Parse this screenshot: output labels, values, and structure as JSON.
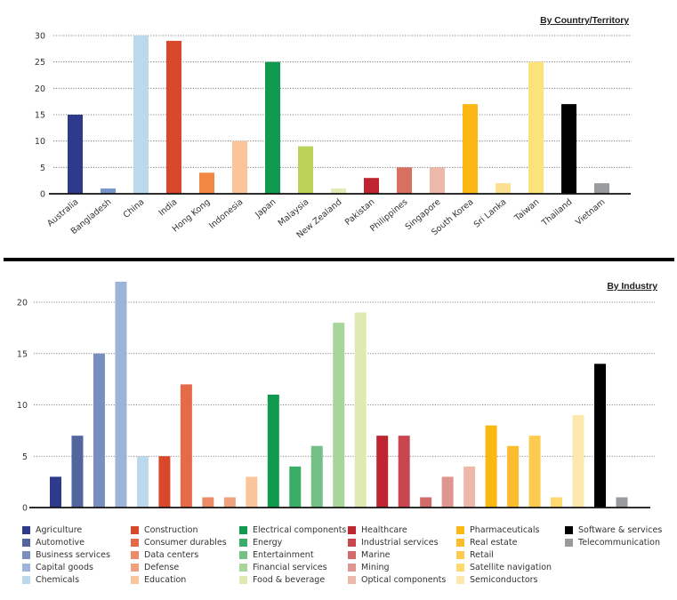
{
  "chart_data": [
    {
      "type": "bar",
      "title": "By Country/Territory",
      "xlabel": "",
      "ylabel": "",
      "ylim": [
        0,
        30
      ],
      "yticks": [
        0,
        5,
        10,
        15,
        20,
        25,
        30
      ],
      "grid": true,
      "categories": [
        "Australia",
        "Bangladesh",
        "China",
        "India",
        "Hong Kong",
        "Indonesia",
        "Japan",
        "Malaysia",
        "New Zealand",
        "Pakistan",
        "Philippines",
        "Singapore",
        "South Korea",
        "Sri Lanka",
        "Taiwan",
        "Thailand",
        "Vietnam"
      ],
      "values": [
        15,
        1,
        30,
        29,
        4,
        10,
        25,
        9,
        1,
        3,
        5,
        5,
        17,
        2,
        25,
        17,
        2
      ],
      "colors": [
        "#2e3a8c",
        "#7596c9",
        "#bcd8ec",
        "#d9482b",
        "#f28744",
        "#fbc59c",
        "#0f9a50",
        "#bcd35a",
        "#e3ebb5",
        "#be2530",
        "#d7705f",
        "#ebb8aa",
        "#fbb812",
        "#fde08f",
        "#fce27a",
        "#000000",
        "#9a9b9d"
      ]
    },
    {
      "type": "bar",
      "title": "By Industry",
      "xlabel": "",
      "ylabel": "",
      "ylim": [
        0,
        22
      ],
      "yticks": [
        0,
        5,
        10,
        15,
        20
      ],
      "grid": true,
      "legend_position": "bottom",
      "categories": [
        "Agriculture",
        "Automotive",
        "Business services",
        "Capital goods",
        "Chemicals",
        "Construction",
        "Consumer durables",
        "Data centers",
        "Defense",
        "Education",
        "Electrical components",
        "Energy",
        "Entertainment",
        "Financial services",
        "Food & beverage",
        "Healthcare",
        "Industrial services",
        "Marine",
        "Mining",
        "Optical components",
        "Pharmaceuticals",
        "Real estate",
        "Retail",
        "Satellite navigation",
        "Semiconductors",
        "Software & services",
        "Telecommunication"
      ],
      "values": [
        3,
        7,
        15,
        22,
        5,
        5,
        12,
        1,
        1,
        3,
        11,
        4,
        6,
        18,
        19,
        7,
        7,
        1,
        3,
        4,
        8,
        6,
        7,
        1,
        9,
        14,
        1
      ],
      "colors": [
        "#2e3a8c",
        "#52659f",
        "#7a8fc0",
        "#9cb3da",
        "#bcd8ec",
        "#d9482b",
        "#e66a48",
        "#ec8b67",
        "#f0a27f",
        "#fbc59c",
        "#0f9a50",
        "#3aae69",
        "#73c187",
        "#a8d69a",
        "#deeab2",
        "#be2530",
        "#c94650",
        "#d36b6a",
        "#df9590",
        "#ebb8aa",
        "#fbb812",
        "#fcbd2c",
        "#fdcc4f",
        "#fdd96f",
        "#fde7ad",
        "#000000",
        "#9a9b9d"
      ],
      "legend_columns": [
        [
          "Agriculture",
          "Automotive",
          "Business services",
          "Capital goods",
          "Chemicals"
        ],
        [
          "Construction",
          "Consumer durables",
          "Data centers",
          "Defense",
          "Education"
        ],
        [
          "Electrical components",
          "Energy",
          "Entertainment",
          "Financial services",
          "Food & beverage"
        ],
        [
          "Healthcare",
          "Industrial services",
          "Marine",
          "Mining",
          "Optical components"
        ],
        [
          "Pharmaceuticals",
          "Real estate",
          "Retail",
          "Satellite navigation",
          "Semiconductors"
        ],
        [
          "Software & services",
          "Telecommunication"
        ]
      ]
    }
  ]
}
